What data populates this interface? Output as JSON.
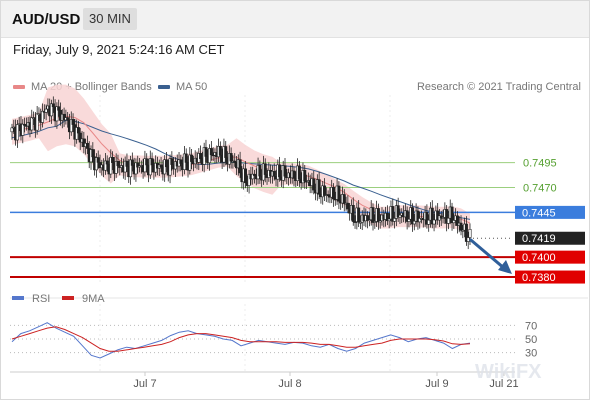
{
  "header": {
    "symbol": "AUD/USD",
    "timeframe": "30 MIN"
  },
  "timestamp": "Friday, July 9, 2021 5:24:16 AM CET",
  "legend": {
    "ma_bb": "MA 20 + Bollinger Bands",
    "ma50": "MA 50",
    "rsi": "RSI",
    "ma9": "9MA"
  },
  "credit": "Research © 2021 Trading Central",
  "colors": {
    "ma_bb": "#e88888",
    "ma50": "#3a6090",
    "bands": "#f8d4d4",
    "rsi": "#5577cc",
    "ma9": "#cc2222",
    "support": "#c00000",
    "resistance": "#9bcf7e",
    "pivot": "#3b7ddd",
    "arrow": "#2f5f9a"
  },
  "chart_data": [
    {
      "type": "candlestick",
      "title": "",
      "x_labels": [
        "Jul 7",
        "Jul 8",
        "Jul 9",
        "Jul 21"
      ],
      "ylim": [
        0.7372,
        0.7563
      ],
      "levels": [
        {
          "value": 0.7495,
          "label": "0.7495",
          "kind": "resistance"
        },
        {
          "value": 0.747,
          "label": "0.7470",
          "kind": "resistance"
        },
        {
          "value": 0.7445,
          "label": "0.7445",
          "kind": "pivot"
        },
        {
          "value": 0.7419,
          "label": "0.7419",
          "kind": "last"
        },
        {
          "value": 0.74,
          "label": "0.7400",
          "kind": "support"
        },
        {
          "value": 0.738,
          "label": "0.7380",
          "kind": "support"
        }
      ],
      "close_path": [
        0.7526,
        0.753,
        0.7534,
        0.754,
        0.755,
        0.7546,
        0.7538,
        0.7528,
        0.7514,
        0.7498,
        0.7491,
        0.7493,
        0.7491,
        0.749,
        0.7491,
        0.7492,
        0.7491,
        0.749,
        0.7493,
        0.7495,
        0.7496,
        0.75,
        0.7503,
        0.7505,
        0.75,
        0.7494,
        0.7476,
        0.7483,
        0.7485,
        0.7483,
        0.7484,
        0.7482,
        0.7482,
        0.7476,
        0.7468,
        0.7463,
        0.7463,
        0.7456,
        0.7441,
        0.7438,
        0.7441,
        0.7439,
        0.7441,
        0.7444,
        0.7441,
        0.7439,
        0.7439,
        0.744,
        0.7441,
        0.7441,
        0.743,
        0.7419
      ]
    },
    {
      "type": "line",
      "title": "",
      "series": [
        {
          "name": "RSI"
        },
        {
          "name": "9MA"
        }
      ],
      "ylim": [
        0,
        100
      ],
      "y_ticks": [
        70,
        50,
        30
      ],
      "rsi": [
        46,
        58,
        62,
        68,
        74,
        66,
        60,
        54,
        40,
        26,
        22,
        28,
        34,
        38,
        36,
        40,
        44,
        48,
        55,
        60,
        62,
        58,
        56,
        54,
        50,
        48,
        40,
        44,
        48,
        46,
        44,
        42,
        45,
        44,
        40,
        38,
        42,
        36,
        32,
        36,
        44,
        48,
        52,
        56,
        52,
        46,
        50,
        52,
        48,
        44,
        36,
        42,
        44
      ],
      "ma9": [
        50,
        54,
        58,
        62,
        66,
        68,
        64,
        58,
        52,
        44,
        36,
        32,
        32,
        34,
        36,
        38,
        40,
        42,
        46,
        52,
        56,
        58,
        58,
        56,
        54,
        52,
        48,
        46,
        46,
        46,
        46,
        45,
        45,
        45,
        44,
        42,
        42,
        40,
        38,
        38,
        40,
        42,
        44,
        48,
        50,
        50,
        50,
        50,
        49,
        47,
        43,
        42,
        43
      ]
    }
  ],
  "watermark": "WikiFX"
}
